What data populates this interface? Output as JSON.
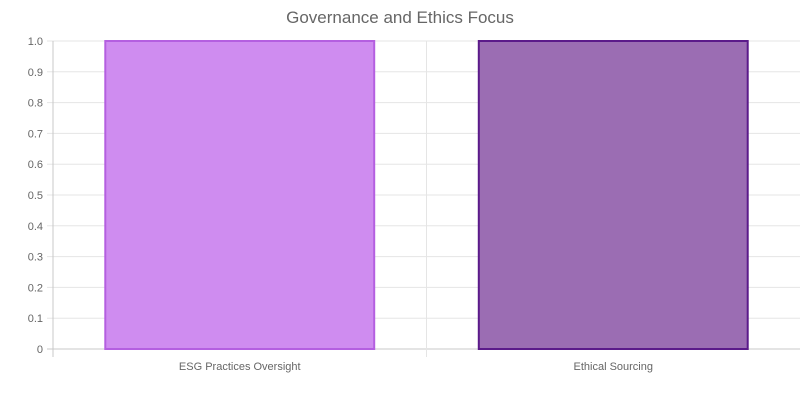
{
  "chart_data": {
    "type": "bar",
    "title": "Governance and Ethics Focus",
    "categories": [
      "ESG Practices Oversight",
      "Ethical Sourcing"
    ],
    "values": [
      1,
      1
    ],
    "colors": {
      "fills": [
        "#cf8cf0",
        "#9b6db3"
      ],
      "borders": [
        "#b45fe0",
        "#5b1a8a"
      ],
      "grid": "#e5e5e5",
      "axis": "#c8c8c8",
      "text": "#666666"
    },
    "xlabel": "",
    "ylabel": "",
    "ylim": [
      0,
      1.0
    ],
    "y_ticks": [
      "0",
      "0.1",
      "0.2",
      "0.3",
      "0.4",
      "0.5",
      "0.6",
      "0.7",
      "0.8",
      "0.9",
      "1.0"
    ],
    "grid": true,
    "legend": "none"
  }
}
